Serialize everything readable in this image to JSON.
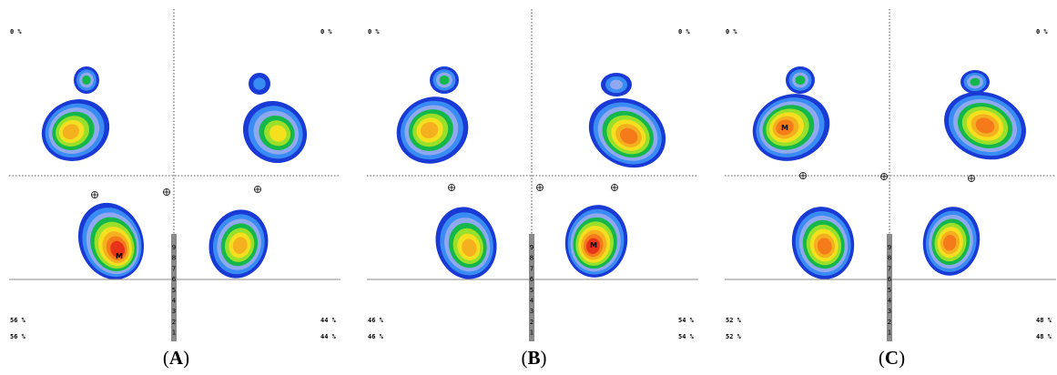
{
  "panels": [
    {
      "id": "A",
      "caption_open": "(",
      "caption_letter": "A",
      "caption_close": ")",
      "top_left_pct": "0 %",
      "top_right_pct": "0 %",
      "bottom_left_pct_1": "56 %",
      "bottom_left_pct_2": "56 %",
      "bottom_right_pct_1": "44 %",
      "bottom_right_pct_2": "44 %",
      "max_marker": "M",
      "scale_digits": [
        "9",
        "8",
        "7",
        "6",
        "5",
        "4",
        "3",
        "2",
        "1"
      ]
    },
    {
      "id": "B",
      "caption_open": "(",
      "caption_letter": "B",
      "caption_close": ")",
      "top_left_pct": "0 %",
      "top_right_pct": "0 %",
      "bottom_left_pct_1": "46 %",
      "bottom_left_pct_2": "46 %",
      "bottom_right_pct_1": "54 %",
      "bottom_right_pct_2": "54 %",
      "max_marker": "M",
      "scale_digits": [
        "9",
        "8",
        "7",
        "6",
        "5",
        "4",
        "3",
        "2",
        "1"
      ]
    },
    {
      "id": "C",
      "caption_open": "(",
      "caption_letter": "C",
      "caption_close": ")",
      "top_left_pct": "0 %",
      "top_right_pct": "0 %",
      "bottom_left_pct_1": "52 %",
      "bottom_left_pct_2": "52 %",
      "bottom_right_pct_1": "48 %",
      "bottom_right_pct_2": "48 %",
      "max_marker": "M",
      "scale_digits": [
        "9",
        "8",
        "7",
        "6",
        "5",
        "4",
        "3",
        "2",
        "1"
      ]
    }
  ],
  "colors": {
    "contour_levels": [
      "#1a3ad6",
      "#3a8cf5",
      "#8fa8f0",
      "#14b84a",
      "#9ae02a",
      "#f5e020",
      "#f5b020",
      "#f57a1a",
      "#e8321a"
    ],
    "axis_dotted": "#555555",
    "baseline": "#888888",
    "scale_bar": "#8a8a8a"
  }
}
